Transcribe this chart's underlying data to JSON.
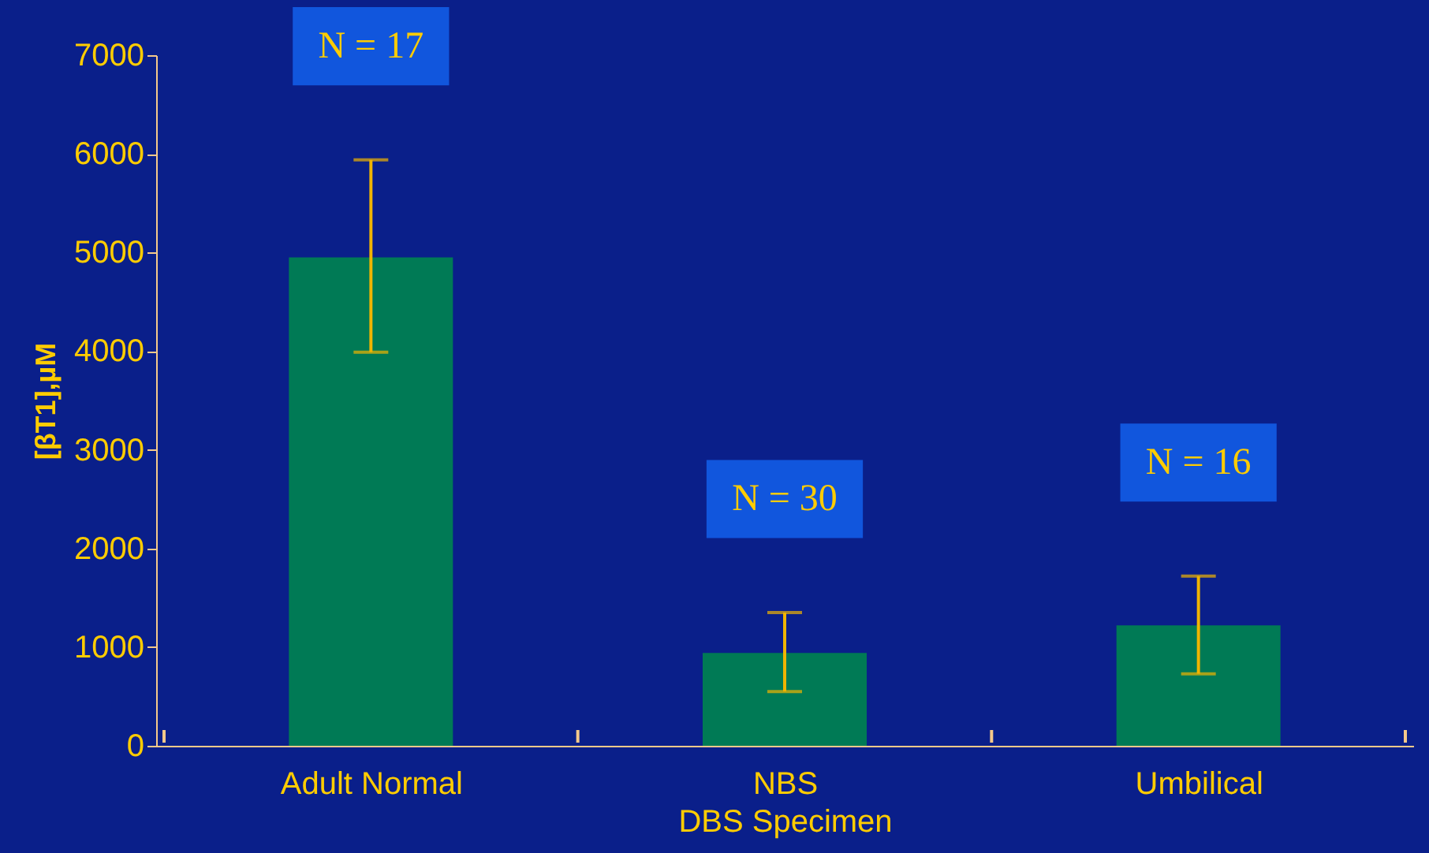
{
  "chart_data": {
    "type": "bar",
    "xlabel": "DBS Specimen",
    "ylabel": "[βT1],µM",
    "categories": [
      "Adult Normal",
      "NBS",
      "Umbilical"
    ],
    "values": [
      4950,
      940,
      1220
    ],
    "color": "#007a55",
    "errors": [
      [
        3990,
        5940
      ],
      [
        550,
        1350
      ],
      [
        730,
        1720
      ]
    ],
    "ylim": [
      0,
      7000
    ],
    "yticks": [
      0,
      1000,
      2000,
      3000,
      4000,
      5000,
      6000,
      7000
    ],
    "grid": false,
    "annotations": [
      "N = 17",
      "N = 30",
      "N = 16"
    ]
  }
}
